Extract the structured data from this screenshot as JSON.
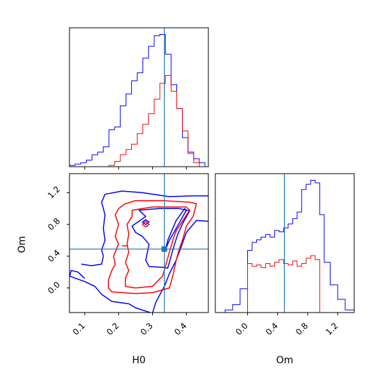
{
  "chart_data": {
    "type": "corner",
    "parameters": [
      "H0",
      "Om"
    ],
    "truth": {
      "H0": 0.335,
      "Om": 0.49
    },
    "colors": {
      "series_a": "#0000ff",
      "series_b": "#ff0000",
      "truth": "#1f77b4",
      "axes": "#000000"
    },
    "panels": [
      {
        "id": "hist-H0",
        "type": "step-histogram",
        "x_param": "H0",
        "xlim": [
          0.055,
          0.465
        ],
        "show_x_ticks": false,
        "x_ticks": [
          0.1,
          0.2,
          0.3,
          0.4
        ],
        "bin_edges": [
          0.055,
          0.0717,
          0.0883,
          0.105,
          0.1217,
          0.1383,
          0.155,
          0.1717,
          0.1883,
          0.205,
          0.2217,
          0.2383,
          0.255,
          0.2717,
          0.2883,
          0.305,
          0.3217,
          0.3383,
          0.355,
          0.3717,
          0.3883,
          0.405,
          0.4217,
          0.4383,
          0.455
        ],
        "series": [
          {
            "color": "blue",
            "values": [
              0.01,
              0.02,
              0.03,
              0.05,
              0.09,
              0.11,
              0.15,
              0.28,
              0.3,
              0.46,
              0.55,
              0.65,
              0.71,
              0.82,
              0.91,
              0.99,
              1.0,
              0.85,
              0.62,
              0.44,
              0.22,
              0.11,
              0.06,
              0.03
            ]
          },
          {
            "color": "red",
            "values": [
              0.0,
              0.0,
              0.0,
              0.0,
              0.0,
              0.0,
              0.0,
              0.01,
              0.04,
              0.09,
              0.13,
              0.17,
              0.25,
              0.32,
              0.4,
              0.51,
              0.63,
              0.69,
              0.57,
              0.44,
              0.27,
              0.1,
              0.03,
              0.0
            ]
          }
        ]
      },
      {
        "id": "joint-H0-Om",
        "type": "contour",
        "x_param": "H0",
        "y_param": "Om",
        "xlim": [
          0.055,
          0.465
        ],
        "ylim": [
          -0.31,
          1.44
        ],
        "x_ticks": [
          0.1,
          0.2,
          0.3,
          0.4
        ],
        "y_ticks": [
          0.0,
          0.4,
          0.8,
          1.2
        ],
        "contours": [
          {
            "color": "blue",
            "points": [
              [
                0.16,
                1.18
              ],
              [
                0.21,
                1.22
              ],
              [
                0.27,
                1.2
              ],
              [
                0.35,
                1.15
              ],
              [
                0.42,
                1.16
              ],
              [
                0.465,
                1.16
              ]
            ]
          },
          {
            "color": "blue",
            "points": [
              [
                0.465,
                0.84
              ],
              [
                0.43,
                0.85
              ],
              [
                0.4,
                0.7
              ],
              [
                0.385,
                0.52
              ],
              [
                0.37,
                0.35
              ],
              [
                0.35,
                0.18
              ],
              [
                0.335,
                0.02
              ],
              [
                0.31,
                -0.18
              ],
              [
                0.3,
                -0.32
              ],
              [
                0.25,
                -0.25
              ],
              [
                0.23,
                -0.2
              ],
              [
                0.18,
                -0.17
              ],
              [
                0.15,
                -0.08
              ],
              [
                0.13,
                0.02
              ],
              [
                0.1,
                0.08
              ],
              [
                0.055,
                0.15
              ]
            ]
          },
          {
            "color": "blue",
            "points": [
              [
                0.09,
                0.3
              ],
              [
                0.12,
                0.28
              ],
              [
                0.15,
                0.3
              ],
              [
                0.155,
                0.4
              ],
              [
                0.15,
                0.48
              ],
              [
                0.16,
                0.6
              ],
              [
                0.155,
                0.75
              ],
              [
                0.16,
                0.92
              ],
              [
                0.15,
                1.08
              ],
              [
                0.16,
                1.18
              ]
            ]
          },
          {
            "color": "blue",
            "points": [
              [
                0.055,
                0.14
              ],
              [
                0.06,
                0.22
              ],
              [
                0.08,
                0.2
              ],
              [
                0.09,
                0.16
              ],
              [
                0.1,
                0.12
              ]
            ]
          },
          {
            "color": "blue",
            "points": [
              [
                0.26,
                0.98
              ],
              [
                0.32,
                1.0
              ],
              [
                0.38,
                1.0
              ],
              [
                0.41,
                0.97
              ],
              [
                0.39,
                0.82
              ],
              [
                0.375,
                0.68
              ],
              [
                0.365,
                0.55
              ],
              [
                0.355,
                0.4
              ],
              [
                0.345,
                0.25
              ],
              [
                0.33,
                0.26
              ],
              [
                0.29,
                0.27
              ],
              [
                0.28,
                0.35
              ],
              [
                0.285,
                0.45
              ],
              [
                0.29,
                0.55
              ],
              [
                0.27,
                0.65
              ],
              [
                0.25,
                0.7
              ],
              [
                0.24,
                0.78
              ],
              [
                0.26,
                0.84
              ],
              [
                0.28,
                0.9
              ],
              [
                0.26,
                0.98
              ]
            ]
          },
          {
            "color": "blue",
            "points": [
              [
                0.34,
                0.5
              ],
              [
                0.35,
                0.6
              ],
              [
                0.37,
                0.75
              ],
              [
                0.4,
                0.98
              ],
              [
                0.395,
                1.0
              ],
              [
                0.37,
                0.85
              ],
              [
                0.355,
                0.7
              ],
              [
                0.345,
                0.6
              ],
              [
                0.34,
                0.5
              ]
            ]
          },
          {
            "color": "blue",
            "points": [
              [
                0.27,
                0.83
              ],
              [
                0.28,
                0.8
              ],
              [
                0.29,
                0.83
              ],
              [
                0.28,
                0.86
              ],
              [
                0.27,
                0.83
              ]
            ]
          },
          {
            "color": "red",
            "points": [
              [
                0.2,
                1.0
              ],
              [
                0.22,
                1.06
              ],
              [
                0.25,
                1.1
              ],
              [
                0.33,
                1.1
              ],
              [
                0.41,
                1.08
              ],
              [
                0.43,
                1.06
              ],
              [
                0.42,
                0.9
              ],
              [
                0.4,
                0.78
              ],
              [
                0.39,
                0.62
              ],
              [
                0.38,
                0.5
              ],
              [
                0.37,
                0.35
              ],
              [
                0.36,
                0.15
              ],
              [
                0.35,
                0.0
              ],
              [
                0.3,
                -0.06
              ],
              [
                0.25,
                -0.07
              ],
              [
                0.18,
                -0.05
              ],
              [
                0.17,
                0.0
              ],
              [
                0.17,
                0.1
              ],
              [
                0.18,
                0.22
              ],
              [
                0.19,
                0.3
              ],
              [
                0.185,
                0.4
              ],
              [
                0.2,
                0.55
              ],
              [
                0.19,
                0.65
              ],
              [
                0.2,
                0.8
              ],
              [
                0.19,
                0.92
              ],
              [
                0.2,
                1.0
              ]
            ]
          },
          {
            "color": "red",
            "points": [
              [
                0.24,
                0.98
              ],
              [
                0.3,
                1.02
              ],
              [
                0.36,
                1.02
              ],
              [
                0.4,
                1.02
              ],
              [
                0.41,
                0.98
              ],
              [
                0.39,
                0.85
              ],
              [
                0.37,
                0.72
              ],
              [
                0.36,
                0.6
              ],
              [
                0.35,
                0.45
              ],
              [
                0.34,
                0.3
              ],
              [
                0.33,
                0.15
              ],
              [
                0.3,
                0.02
              ],
              [
                0.25,
                0.0
              ],
              [
                0.22,
                0.02
              ],
              [
                0.22,
                0.12
              ],
              [
                0.23,
                0.22
              ],
              [
                0.22,
                0.32
              ],
              [
                0.23,
                0.45
              ],
              [
                0.225,
                0.55
              ],
              [
                0.23,
                0.68
              ],
              [
                0.225,
                0.8
              ],
              [
                0.24,
                0.9
              ],
              [
                0.24,
                0.98
              ]
            ]
          },
          {
            "color": "red",
            "points": [
              [
                0.27,
                0.8
              ],
              [
                0.28,
                0.77
              ],
              [
                0.29,
                0.8
              ],
              [
                0.28,
                0.84
              ],
              [
                0.27,
                0.8
              ]
            ]
          },
          {
            "color": "red",
            "points": [
              [
                0.21,
                0.53
              ],
              [
                0.225,
                0.53
              ]
            ]
          }
        ]
      },
      {
        "id": "hist-Om",
        "type": "step-histogram",
        "x_param": "Om",
        "xlim": [
          -0.43,
          1.42
        ],
        "x_ticks": [
          0.0,
          0.4,
          0.8,
          1.2
        ],
        "bin_edges": [
          -0.43,
          -0.3,
          -0.2,
          -0.1,
          0.0,
          0.06,
          0.12,
          0.18,
          0.24,
          0.3,
          0.36,
          0.42,
          0.48,
          0.54,
          0.6,
          0.66,
          0.72,
          0.78,
          0.84,
          0.9,
          0.96,
          1.02,
          1.1,
          1.2,
          1.3,
          1.42
        ],
        "series": [
          {
            "color": "blue",
            "values": [
              0.0,
              0.02,
              0.06,
              0.18,
              0.47,
              0.53,
              0.55,
              0.57,
              0.59,
              0.57,
              0.62,
              0.61,
              0.64,
              0.67,
              0.71,
              0.76,
              0.93,
              0.97,
              1.0,
              0.98,
              0.74,
              0.38,
              0.21,
              0.1,
              0.02
            ]
          },
          {
            "color": "red",
            "values": [
              0.0,
              0.0,
              0.0,
              0.0,
              0.37,
              0.35,
              0.36,
              0.34,
              0.37,
              0.35,
              0.38,
              0.4,
              0.37,
              0.36,
              0.39,
              0.35,
              0.37,
              0.41,
              0.43,
              0.4,
              0.0,
              0.0,
              0.0,
              0.0,
              0.0
            ]
          }
        ]
      }
    ]
  }
}
